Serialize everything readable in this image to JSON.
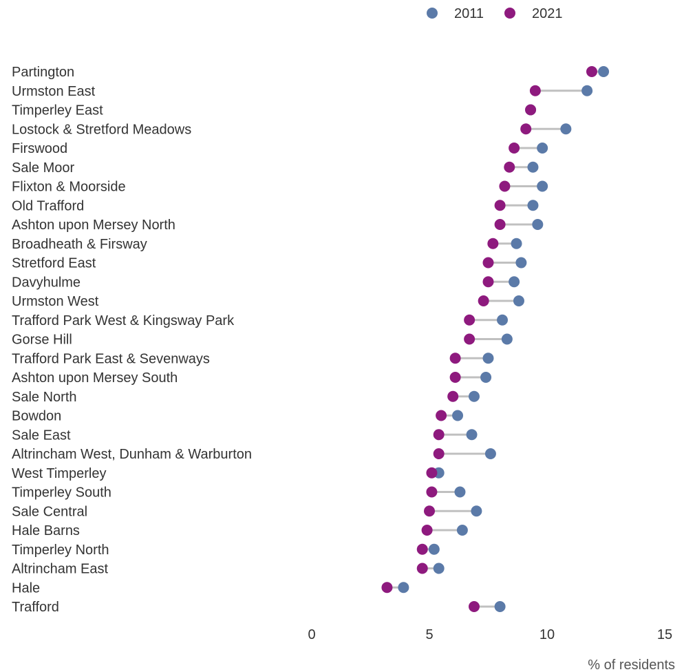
{
  "chart_data": {
    "type": "dumbbell",
    "xlabel": "% of residents",
    "xlim": [
      0,
      15
    ],
    "xticks": [
      0,
      5,
      10,
      15
    ],
    "grid": false,
    "legend_position": "top",
    "series": [
      {
        "name": "2011",
        "color": "#5b7aa8"
      },
      {
        "name": "2021",
        "color": "#8e1a7e"
      }
    ],
    "categories": [
      "Partington",
      "Urmston East",
      "Timperley East",
      "Lostock & Stretford Meadows",
      "Firswood",
      "Sale Moor",
      "Flixton & Moorside",
      "Old Trafford",
      "Ashton upon Mersey North",
      "Broadheath & Firsway",
      "Stretford East",
      "Davyhulme",
      "Urmston West",
      "Trafford Park West & Kingsway Park",
      "Gorse Hill",
      "Trafford Park East & Sevenways",
      "Ashton upon Mersey South",
      "Sale North",
      "Bowdon",
      "Sale East",
      "Altrincham West, Dunham & Warburton",
      "West Timperley",
      "Timperley South",
      "Sale Central",
      "Hale Barns",
      "Timperley North",
      "Altrincham East",
      "Hale",
      "Trafford"
    ],
    "values_2011": [
      12.4,
      11.7,
      9.3,
      10.8,
      9.8,
      9.4,
      9.8,
      9.4,
      9.6,
      8.7,
      8.9,
      8.6,
      8.8,
      8.1,
      8.3,
      7.5,
      7.4,
      6.9,
      6.2,
      6.8,
      7.6,
      5.4,
      6.3,
      7.0,
      6.4,
      5.2,
      5.4,
      3.9,
      8.0
    ],
    "values_2021": [
      11.9,
      9.5,
      9.3,
      9.1,
      8.6,
      8.4,
      8.2,
      8.0,
      8.0,
      7.7,
      7.5,
      7.5,
      7.3,
      6.7,
      6.7,
      6.1,
      6.1,
      6.0,
      5.5,
      5.4,
      5.4,
      5.1,
      5.1,
      5.0,
      4.9,
      4.7,
      4.7,
      3.2,
      6.9
    ]
  }
}
